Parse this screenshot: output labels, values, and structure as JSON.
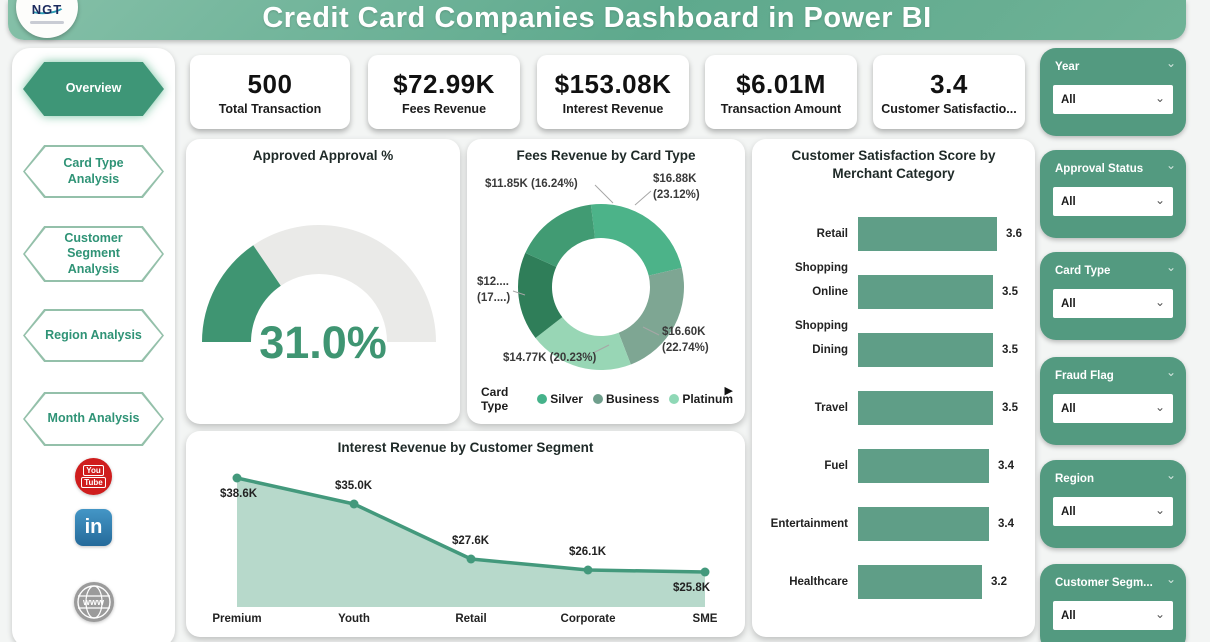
{
  "header": {
    "title": "Credit Card Companies Dashboard in Power BI",
    "logo_text": "NGT"
  },
  "sidebar": {
    "items": [
      {
        "label": "Overview",
        "active": true
      },
      {
        "label": "Card Type Analysis",
        "active": false
      },
      {
        "label": "Customer Segment Analysis",
        "active": false
      },
      {
        "label": "Region Analysis",
        "active": false
      },
      {
        "label": "Month Analysis",
        "active": false
      }
    ],
    "social": {
      "youtube": {
        "line1": "You",
        "line2": "Tube",
        "color": "#cf1d1d"
      },
      "linkedin": {
        "label": "in",
        "color": "#2d76a8"
      },
      "website": {
        "label": "www",
        "color": "#9b9b9b"
      }
    }
  },
  "kpis": [
    {
      "value": "500",
      "label": "Total Transaction"
    },
    {
      "value": "$72.99K",
      "label": "Fees Revenue"
    },
    {
      "value": "$153.08K",
      "label": "Interest Revenue"
    },
    {
      "value": "$6.01M",
      "label": "Transaction Amount"
    },
    {
      "value": "3.4",
      "label": "Customer Satisfactio..."
    }
  ],
  "filters": [
    {
      "label": "Year",
      "value": "All"
    },
    {
      "label": "Approval Status",
      "value": "All"
    },
    {
      "label": "Card Type",
      "value": "All"
    },
    {
      "label": "Fraud Flag",
      "value": "All"
    },
    {
      "label": "Region",
      "value": "All"
    },
    {
      "label": "Customer Segm...",
      "value": "All"
    }
  ],
  "chart_data": [
    {
      "id": "gauge",
      "type": "gauge",
      "title": "Approved Approval %",
      "value": 31.0,
      "max": 100,
      "display": "31.0%",
      "color": "#3f9572",
      "track_color": "#eaeae8"
    },
    {
      "id": "donut",
      "type": "pie",
      "title": "Fees Revenue by Card Type",
      "legend_title": "Card Type",
      "slices": [
        {
          "name": "Silver",
          "label": "$16.88K\n(23.12%)",
          "value_k": 16.88,
          "pct": 23.12,
          "color": "#4cb389"
        },
        {
          "name": "Business",
          "label": "$16.60K\n(22.74%)",
          "value_k": 16.6,
          "pct": 22.74,
          "color": "#7ea693"
        },
        {
          "name": "Platinum",
          "label": "$14.77K (20.23%)",
          "value_k": 14.77,
          "pct": 20.23,
          "color": "#98d6b5"
        },
        {
          "name": "",
          "label": "$12....\n(17....)",
          "value_k": 12.54,
          "pct": 17.17,
          "color": "#2f7e59"
        },
        {
          "name": "",
          "label": "$11.85K (16.24%)",
          "value_k": 11.85,
          "pct": 16.24,
          "color": "#419b73"
        }
      ],
      "legend": [
        {
          "name": "Silver",
          "color": "#45b28a"
        },
        {
          "name": "Business",
          "color": "#6f9e8c"
        },
        {
          "name": "Platinum",
          "color": "#8fd8b6"
        }
      ],
      "legend_arrow": "▶"
    },
    {
      "id": "bars",
      "type": "bar",
      "title": "Customer Satisfaction Score by Merchant Category",
      "categories": [
        "Retail Shopping",
        "Online Shopping",
        "Dining",
        "Travel",
        "Fuel",
        "Entertainment",
        "Healthcare"
      ],
      "values": [
        3.6,
        3.5,
        3.5,
        3.5,
        3.4,
        3.4,
        3.2
      ],
      "xlim": [
        0,
        3.6
      ],
      "bar_color": "#5f9e87"
    },
    {
      "id": "area",
      "type": "area",
      "title": "Interest Revenue by Customer Segment",
      "categories": [
        "Premium",
        "Youth",
        "Retail",
        "Corporate",
        "SME"
      ],
      "values_k": [
        38.6,
        35.0,
        27.6,
        26.1,
        25.8
      ],
      "labels": [
        "$38.6K",
        "$35.0K",
        "$27.6K",
        "$26.1K",
        "$25.8K"
      ],
      "line_color": "#43997c",
      "fill_color": "#b7d9cb"
    }
  ]
}
